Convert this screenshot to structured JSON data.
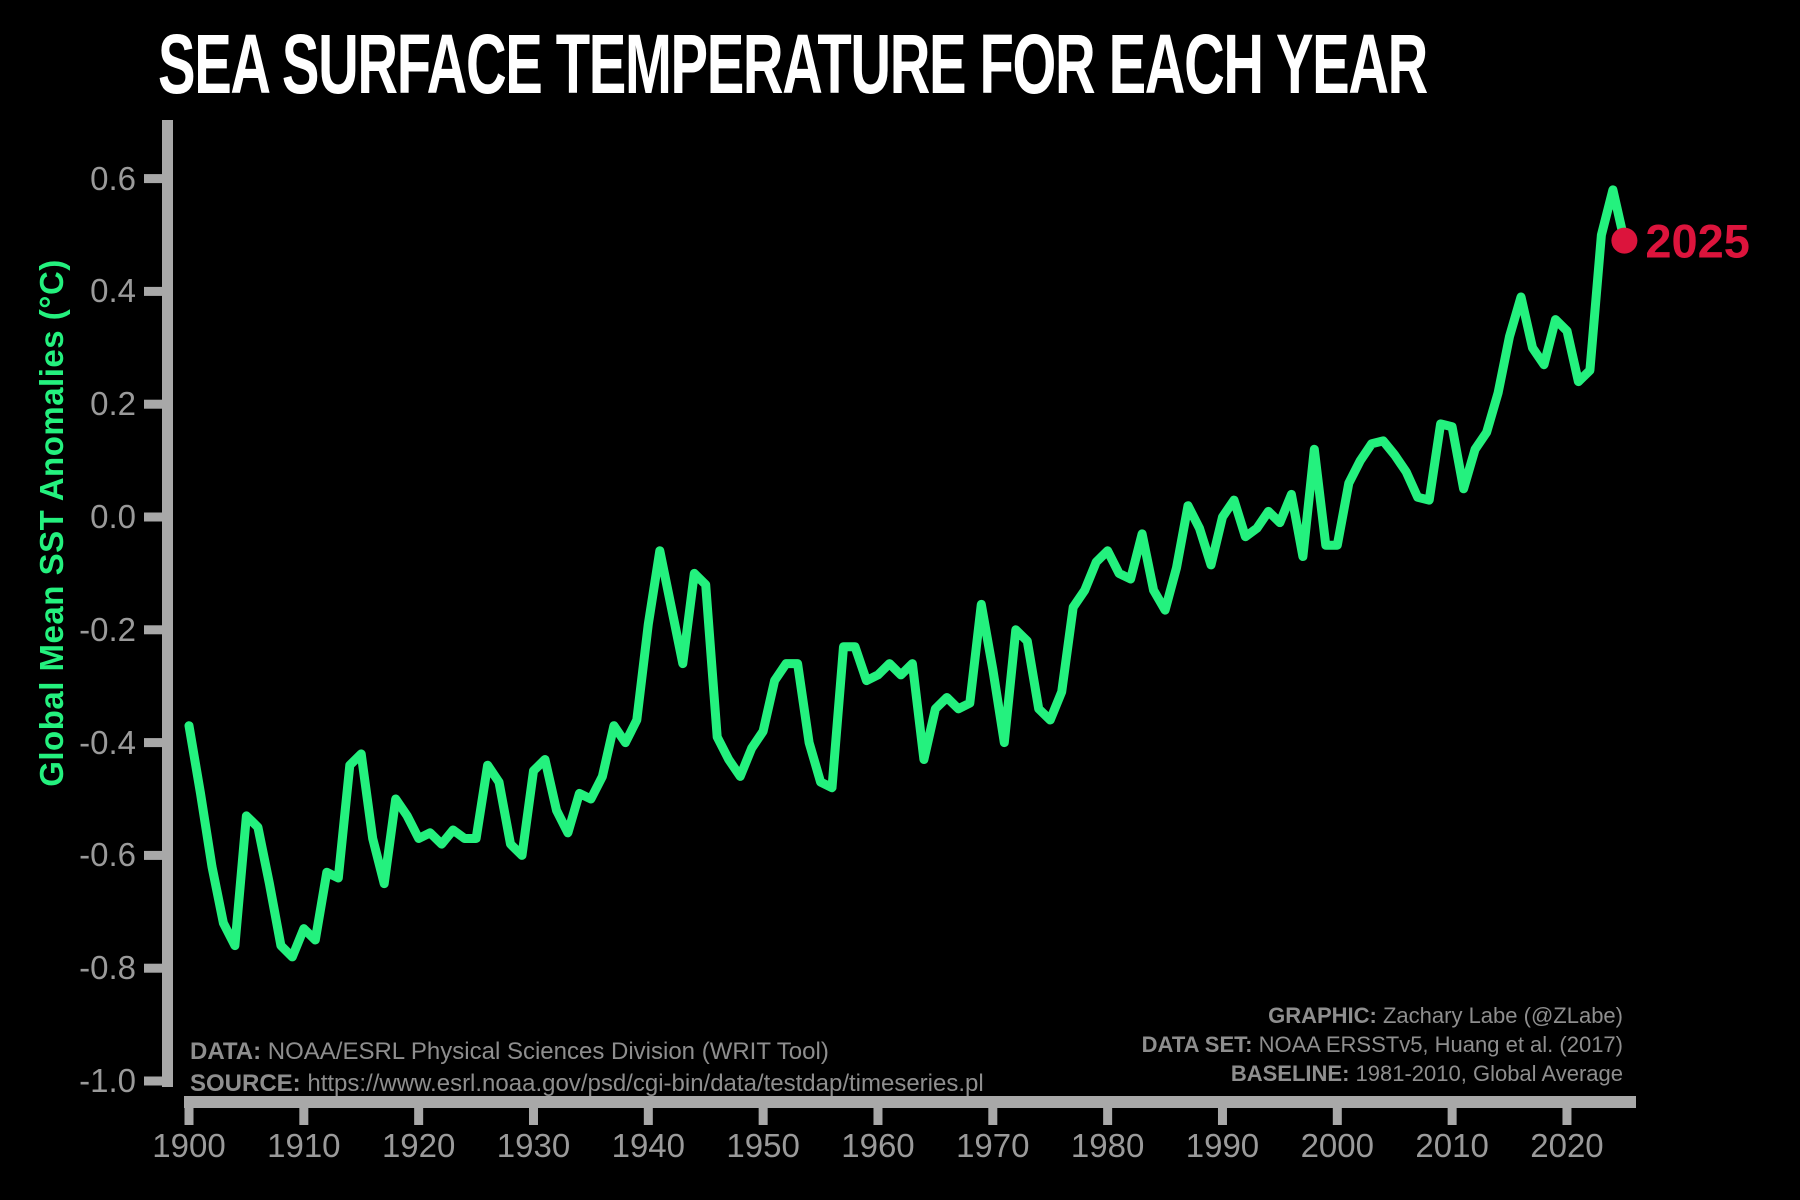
{
  "title": "SEA SURFACE TEMPERATURE FOR EACH YEAR",
  "y_axis": {
    "label": "Global Mean SST Anomalies (°C)",
    "ticks": [
      {
        "label": "0.6",
        "value": 0.6
      },
      {
        "label": "0.4",
        "value": 0.4
      },
      {
        "label": "0.2",
        "value": 0.2
      },
      {
        "label": "0.0",
        "value": 0.0
      },
      {
        "label": "-0.2",
        "value": -0.2
      },
      {
        "label": "-0.4",
        "value": -0.4
      },
      {
        "label": "-0.6",
        "value": -0.6
      },
      {
        "label": "-0.8",
        "value": -0.8
      },
      {
        "label": "-1.0",
        "value": -1.0
      }
    ]
  },
  "x_axis": {
    "ticks": [
      {
        "label": "1900",
        "value": 1900
      },
      {
        "label": "1910",
        "value": 1910
      },
      {
        "label": "1920",
        "value": 1920
      },
      {
        "label": "1930",
        "value": 1930
      },
      {
        "label": "1940",
        "value": 1940
      },
      {
        "label": "1950",
        "value": 1950
      },
      {
        "label": "1960",
        "value": 1960
      },
      {
        "label": "1970",
        "value": 1970
      },
      {
        "label": "1980",
        "value": 1980
      },
      {
        "label": "1990",
        "value": 1990
      },
      {
        "label": "2000",
        "value": 2000
      },
      {
        "label": "2010",
        "value": 2010
      },
      {
        "label": "2020",
        "value": 2020
      }
    ]
  },
  "annotation": {
    "label": "2025"
  },
  "footer_left": [
    {
      "label": "DATA:",
      "text": " NOAA/ESRL Physical Sciences Division (WRIT Tool)"
    },
    {
      "label": "SOURCE:",
      "text": " https://www.esrl.noaa.gov/psd/cgi-bin/data/testdap/timeseries.pl"
    }
  ],
  "footer_right": [
    {
      "label": "GRAPHIC:",
      "text": " Zachary Labe (@ZLabe)"
    },
    {
      "label": "DATA SET:",
      "text": " NOAA ERSSTv5, Huang et al. (2017)"
    },
    {
      "label": "BASELINE:",
      "text": " 1981-2010, Global Average"
    }
  ],
  "colors": {
    "background": "#000000",
    "title": "#FFFFFF",
    "line": "#24F17E",
    "accent_red": "#DC143C",
    "axis": "#A8A8A8",
    "tick_text": "#9A9A9A",
    "footer_text": "#8E8E8E"
  },
  "chart_data": {
    "type": "line",
    "title": "SEA SURFACE TEMPERATURE FOR EACH YEAR",
    "xlabel": "",
    "ylabel": "Global Mean SST Anomalies (°C)",
    "xlim": [
      1897,
      2031
    ],
    "ylim": [
      -1.0,
      0.7
    ],
    "grid": false,
    "legend_position": "none",
    "x": [
      1900,
      1901,
      1902,
      1903,
      1904,
      1905,
      1906,
      1907,
      1908,
      1909,
      1910,
      1911,
      1912,
      1913,
      1914,
      1915,
      1916,
      1917,
      1918,
      1919,
      1920,
      1921,
      1922,
      1923,
      1924,
      1925,
      1926,
      1927,
      1928,
      1929,
      1930,
      1931,
      1932,
      1933,
      1934,
      1935,
      1936,
      1937,
      1938,
      1939,
      1940,
      1941,
      1942,
      1943,
      1944,
      1945,
      1946,
      1947,
      1948,
      1949,
      1950,
      1951,
      1952,
      1953,
      1954,
      1955,
      1956,
      1957,
      1958,
      1959,
      1960,
      1961,
      1962,
      1963,
      1964,
      1965,
      1966,
      1967,
      1968,
      1969,
      1970,
      1971,
      1972,
      1973,
      1974,
      1975,
      1976,
      1977,
      1978,
      1979,
      1980,
      1981,
      1982,
      1983,
      1984,
      1985,
      1986,
      1987,
      1988,
      1989,
      1990,
      1991,
      1992,
      1993,
      1994,
      1995,
      1996,
      1997,
      1998,
      1999,
      2000,
      2001,
      2002,
      2003,
      2004,
      2005,
      2006,
      2007,
      2008,
      2009,
      2010,
      2011,
      2012,
      2013,
      2014,
      2015,
      2016,
      2017,
      2018,
      2019,
      2020,
      2021,
      2022,
      2023,
      2024,
      2025
    ],
    "series": [
      {
        "name": "Global Mean SST Anomaly (°C)",
        "values": [
          -0.37,
          -0.49,
          -0.62,
          -0.72,
          -0.76,
          -0.53,
          -0.55,
          -0.65,
          -0.76,
          -0.78,
          -0.73,
          -0.75,
          -0.63,
          -0.64,
          -0.44,
          -0.42,
          -0.57,
          -0.65,
          -0.5,
          -0.53,
          -0.57,
          -0.56,
          -0.58,
          -0.555,
          -0.57,
          -0.57,
          -0.44,
          -0.47,
          -0.58,
          -0.6,
          -0.45,
          -0.43,
          -0.52,
          -0.56,
          -0.49,
          -0.5,
          -0.46,
          -0.37,
          -0.4,
          -0.36,
          -0.19,
          -0.06,
          -0.16,
          -0.26,
          -0.1,
          -0.12,
          -0.39,
          -0.43,
          -0.46,
          -0.41,
          -0.38,
          -0.29,
          -0.26,
          -0.26,
          -0.4,
          -0.47,
          -0.48,
          -0.23,
          -0.23,
          -0.29,
          -0.28,
          -0.26,
          -0.28,
          -0.26,
          -0.43,
          -0.34,
          -0.32,
          -0.34,
          -0.33,
          -0.155,
          -0.27,
          -0.4,
          -0.2,
          -0.22,
          -0.34,
          -0.36,
          -0.31,
          -0.16,
          -0.13,
          -0.08,
          -0.06,
          -0.1,
          -0.11,
          -0.03,
          -0.13,
          -0.165,
          -0.09,
          0.02,
          -0.02,
          -0.085,
          0.0,
          0.03,
          -0.035,
          -0.02,
          0.01,
          -0.01,
          0.04,
          -0.07,
          0.12,
          -0.05,
          -0.05,
          0.06,
          0.1,
          0.13,
          0.135,
          0.11,
          0.08,
          0.035,
          0.03,
          0.165,
          0.16,
          0.05,
          0.12,
          0.15,
          0.22,
          0.32,
          0.39,
          0.3,
          0.27,
          0.35,
          0.33,
          0.24,
          0.26,
          0.5,
          0.58,
          0.49
        ]
      }
    ],
    "highlight_point": {
      "year": 2025,
      "value": 0.49,
      "label": "2025"
    }
  }
}
